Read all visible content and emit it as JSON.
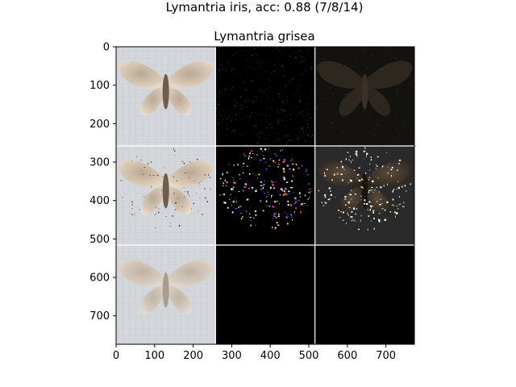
{
  "chart_data": {
    "type": "image-grid",
    "title": "Lymantria iris, acc: 0.88 (7/8/14)",
    "subtitle": "Lymantria grisea",
    "grid": {
      "rows": 3,
      "cols": 3
    },
    "xlim": [
      0,
      774
    ],
    "ylim": [
      774,
      0
    ],
    "x_ticks": [
      0,
      100,
      200,
      300,
      400,
      500,
      600,
      700
    ],
    "y_ticks": [
      0,
      100,
      200,
      300,
      400,
      500,
      600,
      700
    ],
    "tiles": [
      {
        "row": 0,
        "col": 0,
        "content": "moth-photo"
      },
      {
        "row": 0,
        "col": 1,
        "content": "sparse-saliency-dark"
      },
      {
        "row": 0,
        "col": 2,
        "content": "dim-overlay"
      },
      {
        "row": 1,
        "col": 0,
        "content": "moth-photo"
      },
      {
        "row": 1,
        "col": 1,
        "content": "bright-saliency"
      },
      {
        "row": 1,
        "col": 2,
        "content": "highlight-overlay"
      },
      {
        "row": 2,
        "col": 0,
        "content": "moth-photo-faded"
      },
      {
        "row": 2,
        "col": 1,
        "content": "empty-black"
      },
      {
        "row": 2,
        "col": 2,
        "content": "empty-black"
      }
    ],
    "colors": {
      "photo_bg": "#cfd2d6",
      "saliency_bg": "#000000",
      "separator": "#ffffff"
    }
  }
}
